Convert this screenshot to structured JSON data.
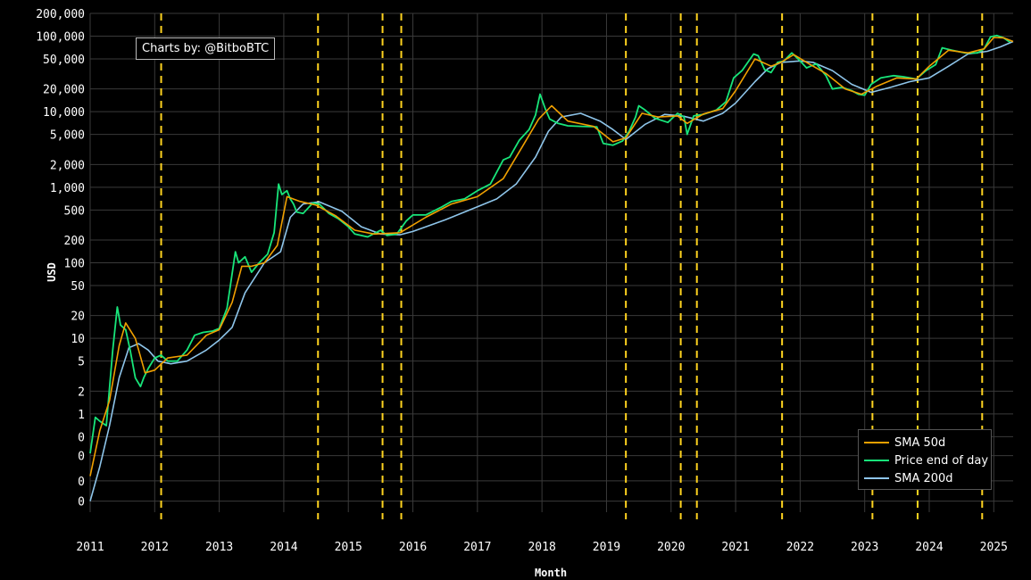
{
  "credit": "Charts by: @BitboBTC",
  "chart_data": {
    "type": "line",
    "title": "",
    "xlabel": "Month",
    "ylabel": "USD",
    "yscale": "log",
    "ylim": [
      0.05,
      200000
    ],
    "xlim": [
      2011.0,
      2025.3
    ],
    "grid": true,
    "legend_position": "bottom-right",
    "y_ticks": [
      {
        "value": 0.07,
        "label": "0"
      },
      {
        "value": 0.13,
        "label": "0"
      },
      {
        "value": 0.28,
        "label": "0"
      },
      {
        "value": 0.5,
        "label": "0"
      },
      {
        "value": 1,
        "label": "1"
      },
      {
        "value": 2,
        "label": "2"
      },
      {
        "value": 5,
        "label": "5"
      },
      {
        "value": 10,
        "label": "10"
      },
      {
        "value": 20,
        "label": "20"
      },
      {
        "value": 50,
        "label": "50"
      },
      {
        "value": 100,
        "label": "100"
      },
      {
        "value": 200,
        "label": "200"
      },
      {
        "value": 500,
        "label": "500"
      },
      {
        "value": 1000,
        "label": "1,000"
      },
      {
        "value": 2000,
        "label": "2,000"
      },
      {
        "value": 5000,
        "label": "5,000"
      },
      {
        "value": 10000,
        "label": "10,000"
      },
      {
        "value": 20000,
        "label": "20,000"
      },
      {
        "value": 50000,
        "label": "50,000"
      },
      {
        "value": 100000,
        "label": "100,000"
      },
      {
        "value": 200000,
        "label": "200,000"
      }
    ],
    "x_ticks": [
      {
        "value": 2011,
        "label": "2011"
      },
      {
        "value": 2012,
        "label": "2012"
      },
      {
        "value": 2013,
        "label": "2013"
      },
      {
        "value": 2014,
        "label": "2014"
      },
      {
        "value": 2015,
        "label": "2015"
      },
      {
        "value": 2016,
        "label": "2016"
      },
      {
        "value": 2017,
        "label": "2017"
      },
      {
        "value": 2018,
        "label": "2018"
      },
      {
        "value": 2019,
        "label": "2019"
      },
      {
        "value": 2020,
        "label": "2020"
      },
      {
        "value": 2021,
        "label": "2021"
      },
      {
        "value": 2022,
        "label": "2022"
      },
      {
        "value": 2023,
        "label": "2023"
      },
      {
        "value": 2024,
        "label": "2024"
      },
      {
        "value": 2025,
        "label": "2025"
      }
    ],
    "vertical_markers": {
      "color": "#ffd21f",
      "style": "dashed",
      "x": [
        2012.1,
        2014.53,
        2015.53,
        2015.82,
        2019.3,
        2020.15,
        2020.4,
        2021.72,
        2023.12,
        2023.82,
        2024.82
      ]
    },
    "series": [
      {
        "name": "Price end of day",
        "color": "#18e57a",
        "x": [
          2011.0,
          2011.08,
          2011.15,
          2011.25,
          2011.35,
          2011.42,
          2011.47,
          2011.55,
          2011.62,
          2011.7,
          2011.78,
          2011.83,
          2011.9,
          2012.0,
          2012.1,
          2012.2,
          2012.35,
          2012.5,
          2012.62,
          2012.75,
          2012.9,
          2013.0,
          2013.12,
          2013.25,
          2013.3,
          2013.4,
          2013.5,
          2013.62,
          2013.75,
          2013.85,
          2013.92,
          2013.97,
          2014.05,
          2014.1,
          2014.15,
          2014.2,
          2014.3,
          2014.45,
          2014.55,
          2014.7,
          2014.85,
          2015.0,
          2015.1,
          2015.3,
          2015.5,
          2015.6,
          2015.75,
          2015.9,
          2016.0,
          2016.2,
          2016.45,
          2016.6,
          2016.8,
          2017.0,
          2017.2,
          2017.4,
          2017.5,
          2017.65,
          2017.8,
          2017.9,
          2017.97,
          2018.05,
          2018.12,
          2018.25,
          2018.4,
          2018.6,
          2018.85,
          2018.95,
          2019.1,
          2019.25,
          2019.35,
          2019.45,
          2019.5,
          2019.6,
          2019.75,
          2019.95,
          2020.1,
          2020.2,
          2020.25,
          2020.35,
          2020.5,
          2020.7,
          2020.85,
          2020.97,
          2021.1,
          2021.28,
          2021.35,
          2021.45,
          2021.55,
          2021.65,
          2021.75,
          2021.87,
          2022.0,
          2022.1,
          2022.25,
          2022.4,
          2022.5,
          2022.65,
          2022.8,
          2022.9,
          2023.0,
          2023.1,
          2023.25,
          2023.45,
          2023.6,
          2023.8,
          2023.95,
          2024.1,
          2024.2,
          2024.35,
          2024.55,
          2024.75,
          2024.85,
          2024.95,
          2025.05,
          2025.15,
          2025.25
        ],
        "y": [
          0.3,
          0.9,
          0.8,
          0.7,
          7.0,
          26.0,
          15.0,
          13.0,
          7.0,
          3.0,
          2.3,
          3.0,
          4.0,
          5.5,
          6.0,
          5.0,
          5.0,
          7.0,
          11.0,
          12.0,
          12.5,
          13.5,
          25.0,
          140.0,
          100.0,
          120.0,
          75.0,
          100.0,
          130.0,
          250.0,
          1100.0,
          800.0,
          900.0,
          700.0,
          600.0,
          470.0,
          450.0,
          620.0,
          600.0,
          450.0,
          380.0,
          300.0,
          240.0,
          220.0,
          270.0,
          230.0,
          240.0,
          360.0,
          430.0,
          430.0,
          550.0,
          650.0,
          700.0,
          900.0,
          1100.0,
          2300.0,
          2500.0,
          4200.0,
          5800.0,
          9000.0,
          17000.0,
          11000.0,
          8000.0,
          7000.0,
          6500.0,
          6400.0,
          6300.0,
          3800.0,
          3600.0,
          4100.0,
          5500.0,
          8500.0,
          12000.0,
          10500.0,
          8200.0,
          7200.0,
          9500.0,
          8500.0,
          5000.0,
          8800.0,
          9200.0,
          10500.0,
          13500.0,
          28000.0,
          35000.0,
          58000.0,
          55000.0,
          36000.0,
          33000.0,
          45000.0,
          47000.0,
          60000.0,
          47000.0,
          38000.0,
          43000.0,
          30000.0,
          20000.0,
          21000.0,
          19000.0,
          17000.0,
          16500.0,
          23000.0,
          28000.0,
          30000.0,
          29000.0,
          27000.0,
          35000.0,
          42000.0,
          70000.0,
          65000.0,
          60000.0,
          60000.0,
          68000.0,
          98000.0,
          102000.0,
          95000.0,
          83000.0
        ]
      },
      {
        "name": "SMA 50d",
        "color": "#f0a000",
        "x": [
          2011.0,
          2011.15,
          2011.3,
          2011.45,
          2011.55,
          2011.7,
          2011.85,
          2012.0,
          2012.2,
          2012.5,
          2012.8,
          2013.0,
          2013.2,
          2013.35,
          2013.5,
          2013.7,
          2013.9,
          2014.05,
          2014.25,
          2014.5,
          2014.8,
          2015.1,
          2015.4,
          2015.8,
          2016.2,
          2016.6,
          2017.0,
          2017.4,
          2017.7,
          2017.95,
          2018.15,
          2018.4,
          2018.8,
          2019.1,
          2019.3,
          2019.55,
          2019.8,
          2020.1,
          2020.25,
          2020.5,
          2020.8,
          2021.0,
          2021.3,
          2021.55,
          2021.7,
          2021.9,
          2022.1,
          2022.4,
          2022.7,
          2022.95,
          2023.2,
          2023.5,
          2023.8,
          2024.0,
          2024.3,
          2024.6,
          2024.85,
          2025.0,
          2025.15,
          2025.3
        ],
        "y": [
          0.15,
          0.6,
          1.5,
          8.0,
          16.0,
          10.0,
          3.5,
          3.8,
          5.5,
          6.0,
          11.0,
          13.0,
          30.0,
          90.0,
          90.0,
          100.0,
          170.0,
          750.0,
          650.0,
          580.0,
          420.0,
          270.0,
          240.0,
          250.0,
          400.0,
          600.0,
          750.0,
          1300.0,
          3500.0,
          8000.0,
          12000.0,
          7500.0,
          6400.0,
          4000.0,
          4500.0,
          9500.0,
          8500.0,
          8800.0,
          7000.0,
          9300.0,
          11000.0,
          19000.0,
          50000.0,
          40000.0,
          45000.0,
          57000.0,
          45000.0,
          32000.0,
          20000.0,
          17000.0,
          22000.0,
          28000.0,
          27000.0,
          40000.0,
          65000.0,
          60000.0,
          68000.0,
          96000.0,
          95000.0,
          85000.0
        ]
      },
      {
        "name": "SMA 200d",
        "color": "#8ec5ea",
        "x": [
          2011.0,
          2011.15,
          2011.3,
          2011.45,
          2011.6,
          2011.75,
          2011.9,
          2012.05,
          2012.25,
          2012.5,
          2012.8,
          2013.0,
          2013.2,
          2013.4,
          2013.7,
          2013.95,
          2014.1,
          2014.3,
          2014.55,
          2014.9,
          2015.2,
          2015.5,
          2015.8,
          2016.0,
          2016.5,
          2017.0,
          2017.3,
          2017.6,
          2017.9,
          2018.1,
          2018.3,
          2018.6,
          2018.9,
          2019.1,
          2019.3,
          2019.6,
          2019.9,
          2020.2,
          2020.5,
          2020.8,
          2021.0,
          2021.3,
          2021.5,
          2021.7,
          2022.0,
          2022.2,
          2022.5,
          2022.8,
          2023.1,
          2023.4,
          2023.7,
          2024.0,
          2024.3,
          2024.6,
          2024.9,
          2025.1,
          2025.3
        ],
        "y": [
          0.07,
          0.2,
          0.7,
          3.0,
          7.5,
          8.5,
          7.0,
          5.0,
          4.6,
          5.0,
          7.0,
          9.5,
          14.0,
          40.0,
          100.0,
          140.0,
          400.0,
          600.0,
          640.0,
          480.0,
          300.0,
          240.0,
          235.0,
          260.0,
          370.0,
          550.0,
          700.0,
          1100.0,
          2500.0,
          5500.0,
          8500.0,
          9500.0,
          7500.0,
          5800.0,
          4300.0,
          6800.0,
          9200.0,
          8700.0,
          7500.0,
          9500.0,
          13000.0,
          25000.0,
          37000.0,
          45000.0,
          47000.0,
          45000.0,
          35000.0,
          23000.0,
          18000.0,
          21000.0,
          25000.0,
          28000.0,
          40000.0,
          58000.0,
          63000.0,
          72000.0,
          85000.0
        ]
      }
    ]
  },
  "legend": {
    "items": [
      {
        "label": "SMA 50d",
        "color": "#f0a000"
      },
      {
        "label": "Price end of day",
        "color": "#18e57a"
      },
      {
        "label": "SMA 200d",
        "color": "#8ec5ea"
      }
    ]
  }
}
